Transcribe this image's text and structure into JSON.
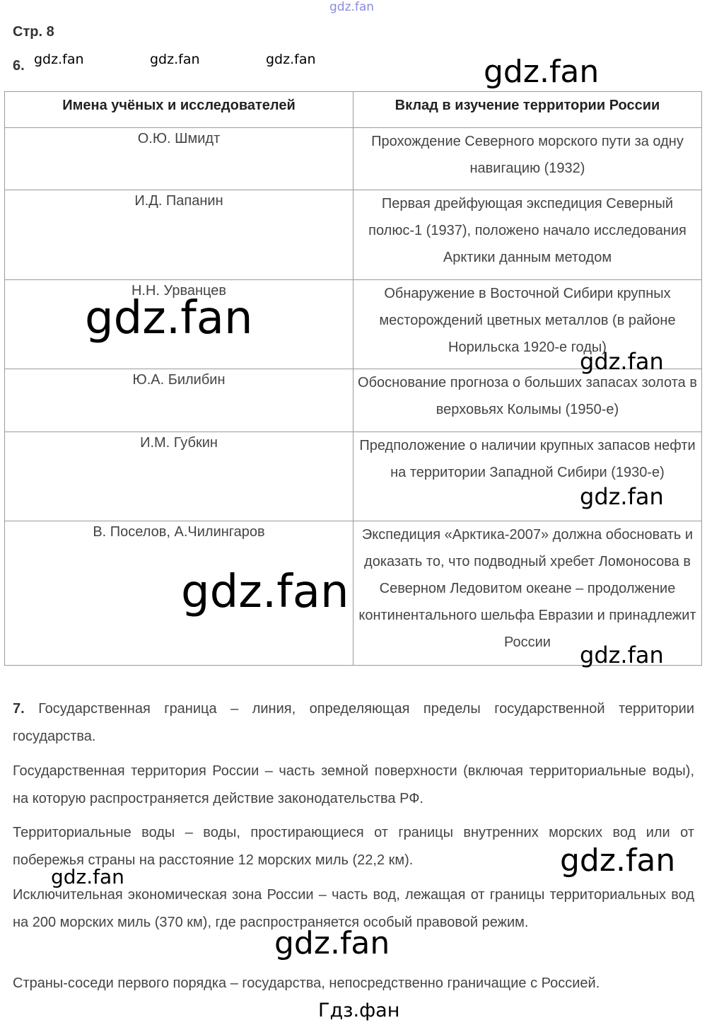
{
  "header": {
    "page_label": "Стр. 8",
    "task6_number": "6.",
    "watermark": "gdz.fan",
    "bottom_watermark": "Гдз.фан"
  },
  "table": {
    "headers": [
      "Имена учёных и исследователей",
      "Вклад в изучение территории России"
    ],
    "rows": [
      {
        "name": "О.Ю. Шмидт",
        "contribution": "Прохождение Северного морского пути за одну навигацию (1932)"
      },
      {
        "name": "И.Д. Папанин",
        "contribution": "Первая дрейфующая экспедиция Северный полюс-1 (1937), положено начало исследования Арктики данным методом"
      },
      {
        "name": "Н.Н. Урванцев",
        "contribution": "Обнаружение в Восточной Сибири крупных месторождений цветных металлов (в районе Норильска 1920-е годы)"
      },
      {
        "name": "Ю.А. Билибин",
        "contribution": "Обоснование прогноза о больших запасах золота в верховьях Колымы (1950-е)"
      },
      {
        "name": "И.М. Губкин",
        "contribution": "Предположение о наличии крупных запасов нефти на территории Западной Сибири (1930-е)"
      },
      {
        "name": "В. Поселов, А.Чилингаров",
        "contribution": "Экспедиция «Арктика-2007» должна обосновать и доказать то, что подводный хребет Ломоносова в Северном Ледовитом океане – продолжение континентального шельфа Евразии и принадлежит России"
      }
    ]
  },
  "task7": {
    "number": "7.",
    "paragraphs": [
      "Государственная граница – линия, определяющая пределы государственной территории государства.",
      "Государственная территория России – часть земной поверхности (включая территориальные воды), на которую распространяется действие законодательства РФ.",
      "Территориальные воды – воды, простирающиеся от границы внутренних морских вод или от побережья страны на расстояние 12 морских миль (22,2 км).",
      "Исключительная экономическая зона России – часть вод, лежащая от границы территориальных вод на 200 морских миль (370 км), где распространяется особый правовой режим.",
      "Страны-соседи первого порядка – государства, непосредственно граничащие с Россией."
    ]
  }
}
